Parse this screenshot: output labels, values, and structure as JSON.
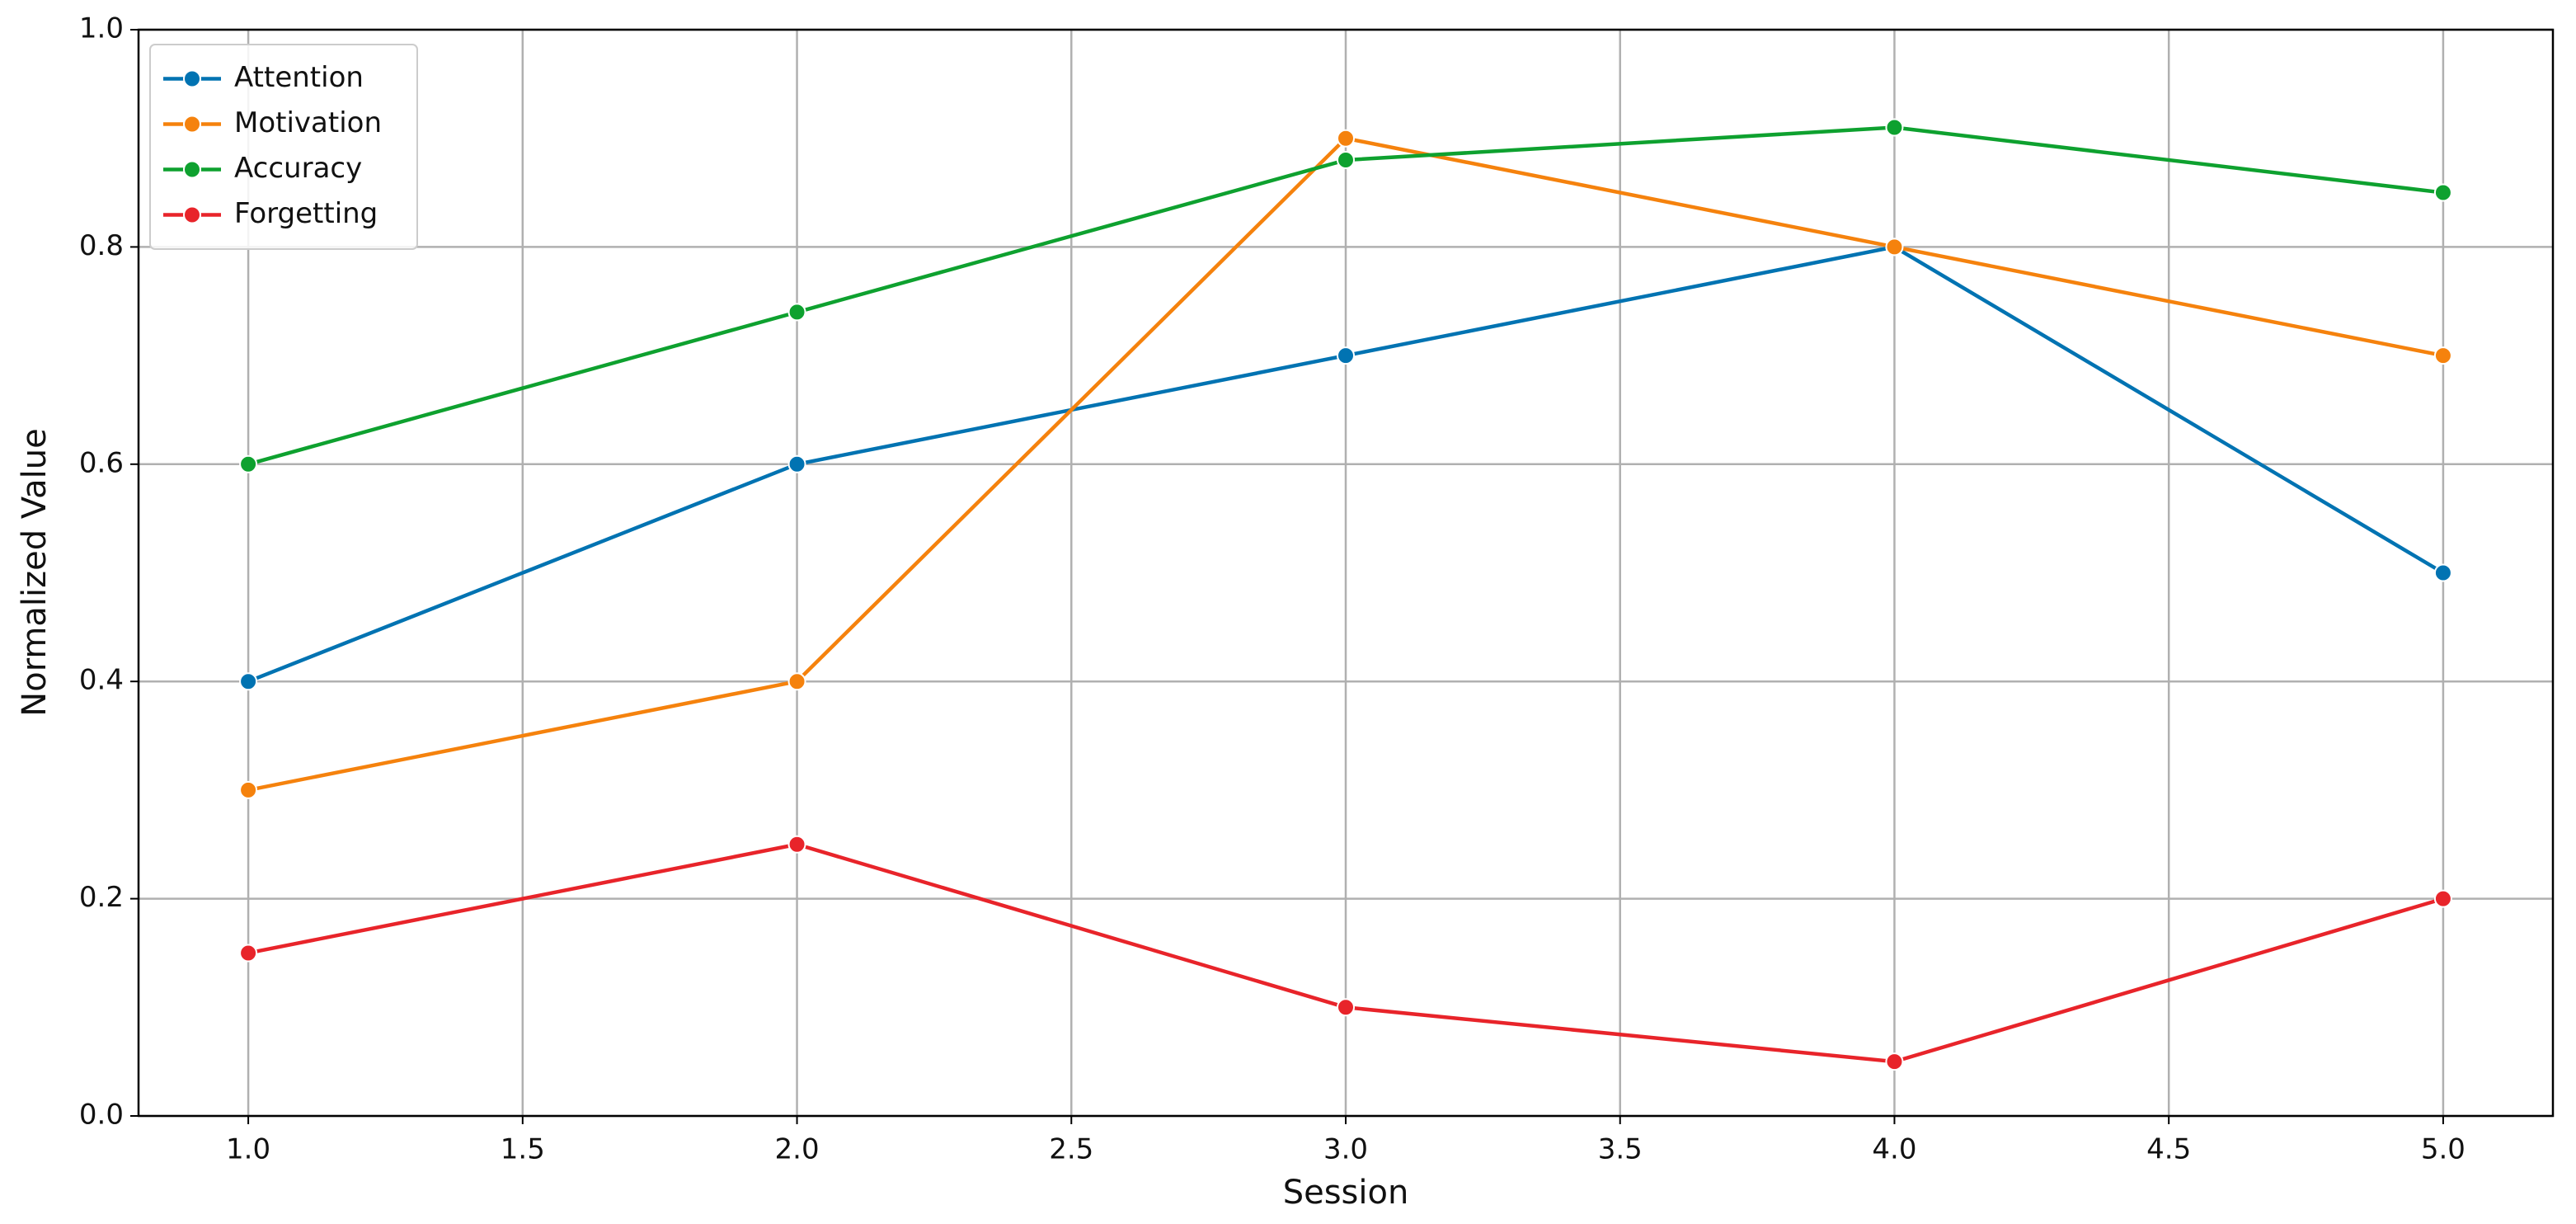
{
  "chart_data": {
    "type": "line",
    "x_label": "Session",
    "y_label": "Normalized Value",
    "x": [
      1,
      2,
      3,
      4,
      5
    ],
    "series": [
      {
        "name": "Attention",
        "color": "#0173b2",
        "values": [
          0.4,
          0.6,
          0.7,
          0.8,
          0.5
        ]
      },
      {
        "name": "Motivation",
        "color": "#f5820d",
        "values": [
          0.3,
          0.4,
          0.9,
          0.8,
          0.7
        ]
      },
      {
        "name": "Accuracy",
        "color": "#0ea12f",
        "values": [
          0.6,
          0.74,
          0.88,
          0.91,
          0.85
        ]
      },
      {
        "name": "Forgetting",
        "color": "#e8242a",
        "values": [
          0.15,
          0.25,
          0.1,
          0.05,
          0.2
        ]
      }
    ],
    "xlim": [
      0.8,
      5.2
    ],
    "xticks": [
      {
        "value": 1,
        "label": "1.0"
      },
      1.5,
      {
        "value": 2,
        "label": "2.0"
      },
      2.5,
      {
        "value": 3,
        "label": "3.0"
      },
      3.5,
      {
        "value": 4,
        "label": "4.0"
      },
      4.5,
      {
        "value": 5,
        "label": "5.0"
      }
    ],
    "ylim": [
      0,
      1
    ],
    "yticks": [
      {
        "value": 0,
        "label": "0.0"
      },
      0.2,
      0.4,
      0.6,
      0.8,
      {
        "value": 1,
        "label": "1.0"
      }
    ],
    "grid": true,
    "legend": "upper left"
  }
}
